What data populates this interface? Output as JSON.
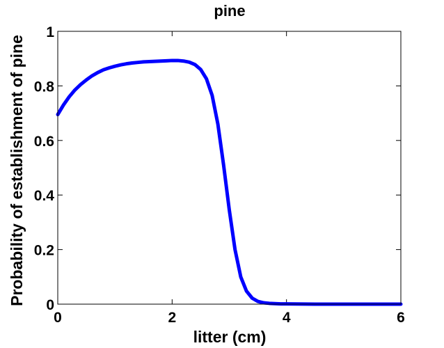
{
  "chart_data": {
    "type": "line",
    "title": "pine",
    "xlabel": "litter (cm)",
    "ylabel": "Probability of establishment of pine",
    "xlim": [
      0,
      6
    ],
    "ylim": [
      0,
      1
    ],
    "x_ticks": [
      0,
      2,
      4,
      6
    ],
    "y_ticks": [
      0,
      0.2,
      0.4,
      0.6,
      0.8,
      1
    ],
    "x_tick_labels": [
      "0",
      "2",
      "4",
      "6"
    ],
    "y_tick_labels": [
      "0",
      "0.2",
      "0.4",
      "0.6",
      "0.8",
      "1"
    ],
    "grid": false,
    "series": [
      {
        "color": "#0000ff",
        "x": [
          0,
          0.1,
          0.2,
          0.3,
          0.4,
          0.5,
          0.6,
          0.7,
          0.8,
          0.9,
          1.0,
          1.1,
          1.2,
          1.3,
          1.4,
          1.5,
          1.6,
          1.7,
          1.8,
          1.9,
          2.0,
          2.1,
          2.2,
          2.3,
          2.4,
          2.5,
          2.6,
          2.7,
          2.8,
          2.9,
          3.0,
          3.1,
          3.2,
          3.3,
          3.4,
          3.5,
          3.6,
          3.7,
          3.8,
          3.9,
          4.0,
          4.5,
          5.0,
          5.5,
          6.0
        ],
        "y": [
          0.695,
          0.73,
          0.76,
          0.785,
          0.805,
          0.822,
          0.837,
          0.849,
          0.859,
          0.866,
          0.872,
          0.877,
          0.881,
          0.884,
          0.886,
          0.888,
          0.889,
          0.89,
          0.891,
          0.892,
          0.893,
          0.893,
          0.891,
          0.887,
          0.878,
          0.86,
          0.826,
          0.765,
          0.66,
          0.51,
          0.345,
          0.2,
          0.1,
          0.048,
          0.022,
          0.01,
          0.005,
          0.003,
          0.002,
          0.001,
          0.001,
          0.0,
          0.0,
          0.0,
          0.0
        ]
      }
    ]
  }
}
